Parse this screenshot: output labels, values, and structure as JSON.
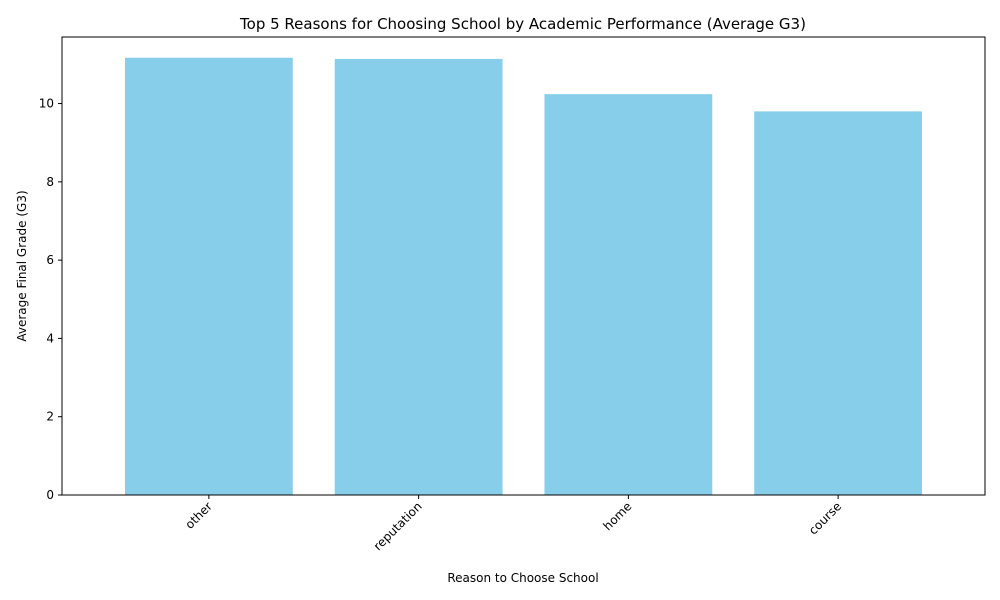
{
  "chart_data": {
    "type": "bar",
    "title": "Top 5 Reasons for Choosing School by Academic Performance (Average G3)",
    "xlabel": "Reason to Choose School",
    "ylabel": "Average Final Grade (G3)",
    "categories": [
      "other",
      "reputation",
      "home",
      "course"
    ],
    "values": [
      11.17,
      11.14,
      10.24,
      9.8
    ],
    "ylim": [
      0,
      11.7
    ],
    "yticks": [
      0,
      2,
      4,
      6,
      8,
      10
    ],
    "bar_color": "#87CEEB",
    "grid": false,
    "legend": false
  }
}
